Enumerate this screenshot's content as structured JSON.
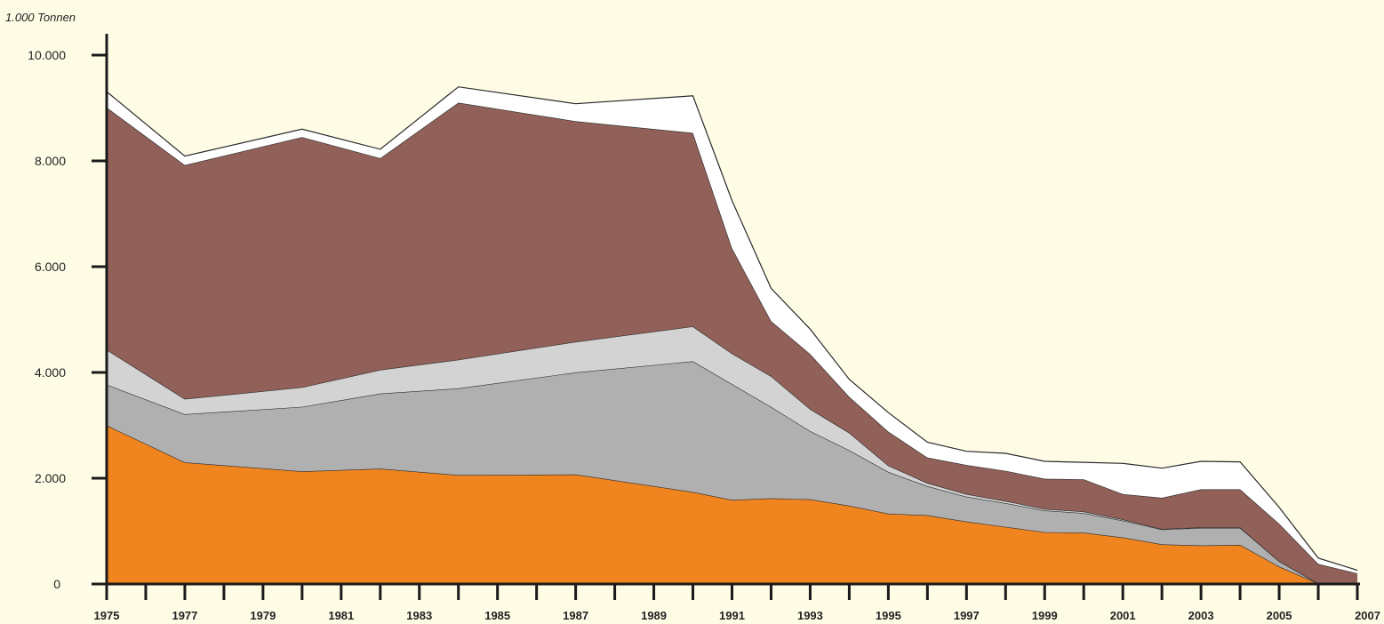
{
  "chart_data": {
    "type": "area",
    "stacked": true,
    "ylabel": "1.000 Tonnen",
    "xlabel": "",
    "ylim": [
      0,
      10000
    ],
    "xlim": [
      1975,
      2007
    ],
    "grid": false,
    "legend": "none",
    "y_ticks": [
      {
        "value": 0,
        "label": "0"
      },
      {
        "value": 2000,
        "label": "2.000"
      },
      {
        "value": 4000,
        "label": "4.000"
      },
      {
        "value": 6000,
        "label": "6.000"
      },
      {
        "value": 8000,
        "label": "8.000"
      },
      {
        "value": 10000,
        "label": "10.000"
      }
    ],
    "x_tick_labels": [
      "1975",
      "1977",
      "1979",
      "1981",
      "1983",
      "1985",
      "1987",
      "1989",
      "1991",
      "1993",
      "1995",
      "1997",
      "1999",
      "2001",
      "2003",
      "2005",
      "2007"
    ],
    "x": [
      1975,
      1977,
      1980,
      1982,
      1984,
      1987,
      1990,
      1991,
      1992,
      1993,
      1994,
      1995,
      1996,
      1997,
      1998,
      1999,
      2000,
      2001,
      2002,
      2003,
      2004,
      2005,
      2006,
      2007
    ],
    "series": [
      {
        "color": "#f08520",
        "values": [
          3000,
          2300,
          2130,
          2180,
          2060,
          2070,
          1740,
          1590,
          1620,
          1600,
          1480,
          1330,
          1300,
          1180,
          1080,
          980,
          970,
          880,
          750,
          730,
          740,
          330,
          10,
          10
        ]
      },
      {
        "color": "#b0b0b0",
        "values": [
          770,
          910,
          1220,
          1420,
          1640,
          1930,
          2470,
          2190,
          1730,
          1290,
          1050,
          790,
          550,
          470,
          450,
          410,
          370,
          320,
          280,
          330,
          320,
          100,
          0,
          0
        ]
      },
      {
        "color": "#d3d3d3",
        "values": [
          660,
          290,
          370,
          450,
          540,
          580,
          660,
          580,
          580,
          420,
          330,
          120,
          60,
          50,
          40,
          30,
          30,
          20,
          10,
          10,
          10,
          0,
          0,
          0
        ]
      },
      {
        "color": "#916058",
        "values": [
          4580,
          4420,
          4730,
          4000,
          4860,
          4170,
          3660,
          1990,
          1040,
          1040,
          680,
          640,
          480,
          550,
          570,
          570,
          610,
          480,
          590,
          720,
          720,
          710,
          370,
          190
        ]
      },
      {
        "color": "#ffffff",
        "values": [
          300,
          170,
          150,
          170,
          300,
          330,
          700,
          900,
          620,
          470,
          330,
          360,
          290,
          260,
          330,
          330,
          320,
          580,
          560,
          530,
          520,
          310,
          110,
          60
        ]
      }
    ]
  }
}
